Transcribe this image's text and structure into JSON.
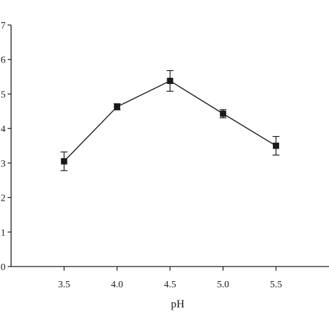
{
  "chart_data": {
    "type": "line",
    "xlabel": "pH",
    "ylabel": "",
    "x": [
      3.5,
      4.0,
      4.5,
      5.0,
      5.5
    ],
    "x_tick_labels": [
      "3.5",
      "4.0",
      "4.5",
      "5.0",
      "5.5"
    ],
    "y_tick_values": [
      0,
      1,
      2,
      3,
      4,
      5,
      6,
      7
    ],
    "y_tick_labels": [
      "0",
      "1",
      "2",
      "3",
      "4",
      "5",
      "6",
      "7"
    ],
    "xlim": [
      3.0,
      6.0
    ],
    "ylim": [
      0,
      7
    ],
    "grid": false,
    "series": [
      {
        "values": [
          3.05,
          4.63,
          5.38,
          4.43,
          3.5
        ],
        "errors": [
          0.27,
          0.09,
          0.3,
          0.12,
          0.27
        ],
        "marker": "square",
        "color": "#1a1a1a"
      }
    ]
  }
}
